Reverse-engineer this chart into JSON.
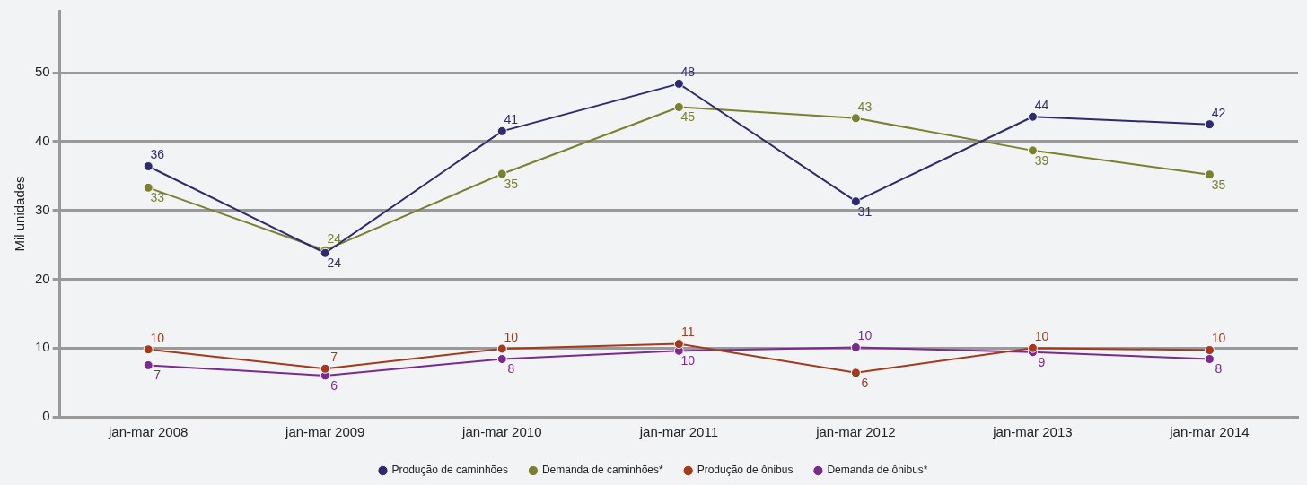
{
  "chart_data": {
    "type": "line",
    "ylabel": "Mil unidades",
    "categories": [
      "jan-mar 2008",
      "jan-mar 2009",
      "jan-mar 2010",
      "jan-mar 2011",
      "jan-mar 2012",
      "jan-mar 2013",
      "jan-mar 2014"
    ],
    "series": [
      {
        "name": "Produção de caminhões",
        "color": "#2e2a6e",
        "values": [
          36.4,
          23.8,
          41.5,
          48.4,
          31.3,
          43.6,
          42.5
        ],
        "value_labels": [
          "36",
          "24",
          "41",
          "48",
          "31",
          "44",
          "42"
        ]
      },
      {
        "name": "Demanda de caminhões*",
        "color": "#7b7f2e",
        "values": [
          33.3,
          24.2,
          35.3,
          45.0,
          43.4,
          38.7,
          35.2
        ],
        "value_labels": [
          "33",
          "24",
          "35",
          "45",
          "43",
          "39",
          "35"
        ]
      },
      {
        "name": "Produção de ônibus",
        "color": "#a23a1e",
        "values": [
          9.8,
          7.0,
          9.9,
          10.6,
          6.4,
          10.0,
          9.7
        ],
        "value_labels": [
          "10",
          "7",
          "10",
          "11",
          "6",
          "10",
          "10"
        ]
      },
      {
        "name": "Demanda de ônibus*",
        "color": "#7b2a90",
        "values": [
          7.5,
          6.0,
          8.4,
          9.6,
          10.1,
          9.4,
          8.4
        ],
        "value_labels": [
          "7",
          "6",
          "8",
          "10",
          "10",
          "9",
          "8"
        ]
      }
    ],
    "ylim": [
      0,
      59
    ],
    "yticks": [
      0,
      10,
      20,
      30,
      40,
      50
    ],
    "grid": "y",
    "legend": "bottom",
    "marker": "circle",
    "line_style": "solid"
  }
}
